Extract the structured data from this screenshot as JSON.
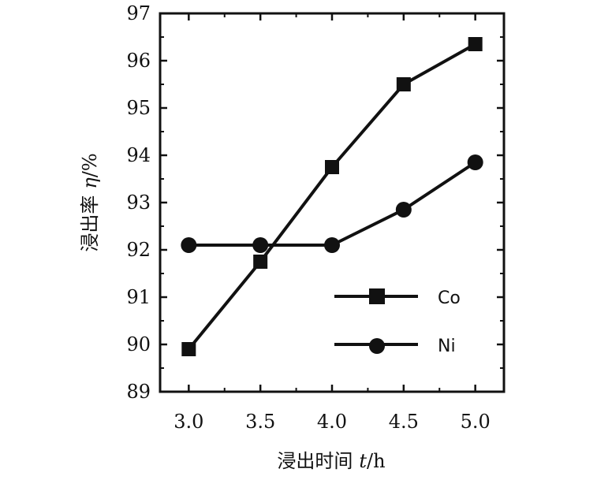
{
  "chart_data": {
    "type": "line",
    "title": "",
    "xlabel": {
      "prefix": "浸出时间",
      "symbol": "t",
      "unit": "/h"
    },
    "ylabel": {
      "prefix": "浸出率",
      "symbol": "η",
      "unit": "/%"
    },
    "xlim": [
      2.8,
      5.2
    ],
    "ylim": [
      89,
      97
    ],
    "xticks": [
      "3.0",
      "3.5",
      "4.0",
      "4.5",
      "5.0"
    ],
    "xtick_values": [
      3.0,
      3.5,
      4.0,
      4.5,
      5.0
    ],
    "yticks": [
      "89",
      "90",
      "91",
      "92",
      "93",
      "94",
      "95",
      "96",
      "97"
    ],
    "ytick_values": [
      89,
      90,
      91,
      92,
      93,
      94,
      95,
      96,
      97
    ],
    "grid": false,
    "legend_position": "lower-right",
    "x": [
      3.0,
      3.5,
      4.0,
      4.5,
      5.0
    ],
    "series": [
      {
        "name": "Co",
        "marker": "square",
        "color": "#111111",
        "values": [
          89.9,
          91.75,
          93.75,
          95.5,
          96.35
        ]
      },
      {
        "name": "Ni",
        "marker": "circle",
        "color": "#111111",
        "values": [
          92.1,
          92.1,
          92.1,
          92.85,
          93.85
        ]
      }
    ]
  }
}
